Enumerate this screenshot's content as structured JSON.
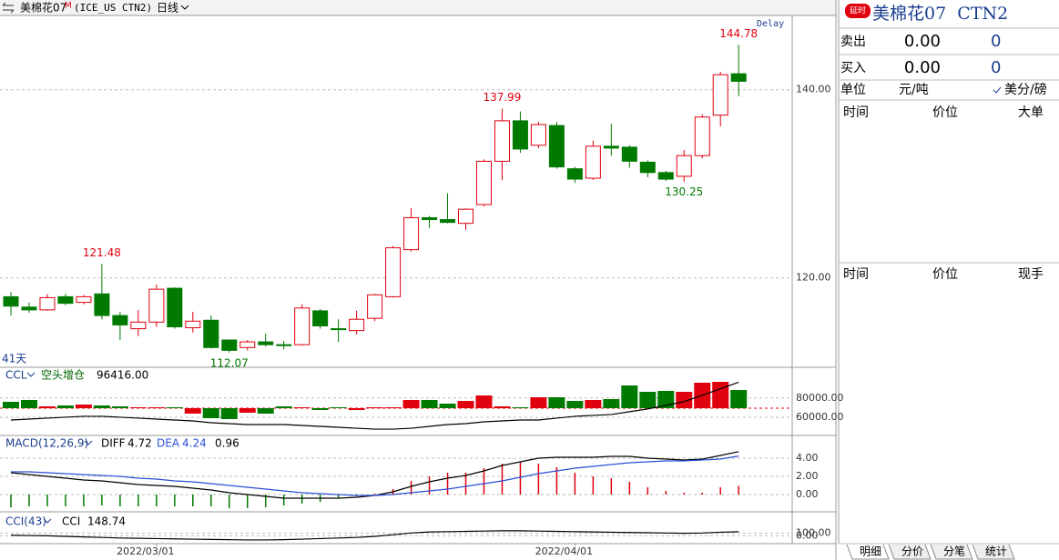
{
  "header": {
    "symbol": "美棉花07",
    "flag": "M",
    "code": "(ICE_US CTN2)",
    "period": "日线",
    "days": "41天",
    "feed": "Delay"
  },
  "chart_data": [
    {
      "type": "candlestick",
      "up_color": "#e0000e",
      "down_color": "#007a00",
      "categories": [
        null,
        null,
        null,
        null,
        null,
        null,
        null,
        null,
        "2022/03/01",
        null,
        null,
        null,
        null,
        null,
        null,
        null,
        null,
        null,
        null,
        null,
        null,
        null,
        null,
        null,
        null,
        null,
        null,
        null,
        null,
        null,
        null,
        "2022/04/01",
        null,
        null,
        null,
        null,
        null,
        null,
        null,
        null,
        null
      ],
      "open": [
        118.0,
        116.9,
        116.6,
        118.0,
        117.4,
        118.3,
        116.0,
        114.6,
        115.3,
        118.9,
        114.7,
        115.5,
        113.4,
        112.6,
        113.2,
        112.9,
        112.9,
        116.5,
        114.6,
        114.4,
        115.7,
        118.0,
        123.0,
        126.4,
        126.2,
        125.8,
        127.8,
        132.4,
        136.7,
        134.1,
        136.2,
        131.6,
        130.6,
        134.0,
        133.9,
        132.3,
        131.2,
        130.8,
        133.0,
        137.3,
        141.7
      ],
      "high": [
        118.5,
        117.4,
        118.3,
        118.3,
        118.2,
        121.48,
        116.4,
        116.6,
        119.3,
        119.0,
        116.4,
        116.0,
        113.4,
        113.4,
        114.1,
        113.3,
        117.2,
        116.7,
        115.6,
        116.5,
        118.3,
        123.4,
        127.4,
        126.6,
        129.0,
        127.4,
        132.6,
        137.99,
        137.7,
        136.6,
        136.6,
        131.8,
        134.6,
        136.4,
        134.1,
        132.5,
        131.4,
        133.6,
        137.4,
        141.9,
        144.78
      ],
      "low": [
        116.0,
        116.3,
        116.5,
        117.1,
        117.2,
        115.6,
        113.4,
        113.8,
        114.8,
        114.6,
        114.2,
        112.5,
        112.07,
        112.3,
        112.7,
        112.4,
        112.8,
        114.6,
        113.2,
        114.0,
        115.4,
        117.9,
        122.8,
        125.3,
        125.8,
        125.1,
        127.6,
        130.4,
        133.3,
        133.8,
        131.6,
        130.1,
        130.4,
        133.0,
        131.7,
        130.7,
        130.3,
        130.25,
        132.7,
        136.1,
        139.3
      ],
      "close": [
        117.0,
        116.6,
        117.9,
        117.3,
        118.0,
        116.0,
        115.0,
        115.3,
        118.8,
        114.8,
        115.4,
        112.6,
        112.3,
        113.2,
        112.9,
        112.8,
        116.8,
        114.9,
        114.5,
        115.6,
        118.2,
        123.2,
        126.4,
        126.2,
        125.9,
        127.3,
        132.4,
        136.7,
        133.7,
        136.3,
        131.8,
        130.5,
        134.0,
        133.8,
        132.4,
        131.2,
        130.5,
        133.0,
        137.1,
        141.6,
        140.9
      ],
      "ylim": [
        110.5,
        147.9
      ],
      "yticks": [
        {
          "value": 120,
          "label": "120.00"
        },
        {
          "value": 140,
          "label": "140.00"
        }
      ]
    },
    {
      "type": "open-interest",
      "indicator": "CCL",
      "status": "空头增仓",
      "last_label": "96416.00",
      "line_color": "#000000",
      "values": [
        57150,
        58100,
        59060,
        60010,
        60960,
        60960,
        60010,
        59060,
        58100,
        57150,
        56200,
        54300,
        53340,
        52390,
        52390,
        52390,
        51440,
        50490,
        49540,
        48580,
        47630,
        47630,
        48580,
        50490,
        52390,
        53340,
        55250,
        56200,
        57150,
        57150,
        59060,
        60960,
        61910,
        62860,
        65720,
        68580,
        72380,
        76190,
        82860,
        89520,
        96416
      ],
      "changes": [
        2100,
        2700,
        600,
        900,
        1200,
        900,
        600,
        300,
        300,
        300,
        -1800,
        -3300,
        -3600,
        -1500,
        -1800,
        600,
        300,
        -600,
        300,
        -600,
        300,
        300,
        2700,
        2700,
        1500,
        2400,
        4200,
        600,
        300,
        3600,
        3600,
        2400,
        2700,
        3000,
        7500,
        5400,
        5700,
        5400,
        8400,
        8700,
        6000
      ],
      "ylim": [
        42000,
        111000
      ],
      "y2lim": [
        -8700,
        13200
      ],
      "yticks": [
        {
          "value": 60000,
          "label": "60000.00"
        },
        {
          "value": 80000,
          "label": "80000.00"
        }
      ]
    },
    {
      "type": "macd",
      "indicator": "MACD(12,26,9)",
      "up_color": "#e0000e",
      "down_color": "#007a00",
      "series": [
        {
          "name": "DIFF",
          "color": "#000000",
          "values": [
            2.4,
            2.2,
            2.0,
            1.8,
            1.6,
            1.5,
            1.3,
            1.1,
            1.0,
            0.9,
            0.7,
            0.5,
            0.2,
            0.0,
            -0.2,
            -0.4,
            -0.4,
            -0.4,
            -0.4,
            -0.3,
            -0.1,
            0.3,
            0.9,
            1.4,
            1.8,
            2.1,
            2.6,
            3.2,
            3.6,
            4.0,
            4.1,
            4.1,
            4.1,
            4.2,
            4.2,
            4.0,
            3.9,
            3.8,
            3.9,
            4.3,
            4.72
          ]
        },
        {
          "name": "DEA",
          "color": "#2a4fd6",
          "values": [
            2.5,
            2.5,
            2.4,
            2.3,
            2.2,
            2.1,
            2.0,
            1.8,
            1.7,
            1.5,
            1.4,
            1.2,
            1.0,
            0.8,
            0.6,
            0.4,
            0.2,
            0.1,
            0.0,
            -0.1,
            -0.1,
            0.0,
            0.2,
            0.4,
            0.6,
            0.9,
            1.2,
            1.5,
            1.9,
            2.3,
            2.6,
            2.9,
            3.1,
            3.3,
            3.5,
            3.6,
            3.7,
            3.7,
            3.8,
            3.9,
            4.24
          ]
        }
      ],
      "bars": [
        -1.4,
        -1.3,
        -1.3,
        -1.3,
        -1.3,
        -1.2,
        -1.3,
        -1.3,
        -1.3,
        -1.3,
        -1.3,
        -1.3,
        -1.5,
        -1.5,
        -1.4,
        -1.2,
        -1.0,
        -0.8,
        -0.4,
        -0.2,
        0.1,
        0.6,
        1.5,
        2.0,
        2.4,
        2.4,
        2.9,
        3.4,
        3.6,
        3.4,
        3.0,
        2.4,
        2.0,
        1.8,
        1.4,
        0.8,
        0.4,
        0.2,
        0.2,
        0.8,
        0.96
      ],
      "ylim": [
        -1.8,
        6.4
      ],
      "yticks": [
        {
          "value": 0,
          "label": "0.00"
        },
        {
          "value": 2,
          "label": "2.00"
        },
        {
          "value": 4,
          "label": "4.00"
        }
      ]
    },
    {
      "type": "cci",
      "indicator": "CCI(43)",
      "series": [
        {
          "name": "CCI",
          "color": "#000000",
          "values": [
            20,
            10,
            0,
            -20,
            -40,
            -60,
            -80,
            -90,
            -100,
            -110,
            -120,
            -130,
            -140,
            -150,
            -150,
            -140,
            -120,
            -100,
            -80,
            -60,
            -20,
            40,
            100,
            140,
            150,
            160,
            170,
            180,
            180,
            170,
            160,
            150,
            140,
            130,
            120,
            110,
            100,
            90,
            100,
            130,
            148.74
          ]
        }
      ],
      "ylim": [
        -250,
        800
      ],
      "yticks": [
        {
          "value": 0,
          "label": "0.00"
        },
        {
          "value": 100,
          "label": "100.00"
        }
      ]
    }
  ],
  "quote_panel": {
    "badge": "延时",
    "title": "美棉花07  CTN2",
    "rows": [
      [
        "卖出",
        "0.00",
        "0"
      ],
      [
        "买入",
        "0.00",
        "0"
      ]
    ],
    "unit": [
      "单位",
      "元/吨",
      "美分/磅"
    ],
    "table1": [
      "时间",
      "价位",
      "大单"
    ],
    "table2": [
      "时间",
      "价位",
      "现手"
    ],
    "tabs": [
      "明细",
      "分价",
      "分笔",
      "统计"
    ]
  }
}
